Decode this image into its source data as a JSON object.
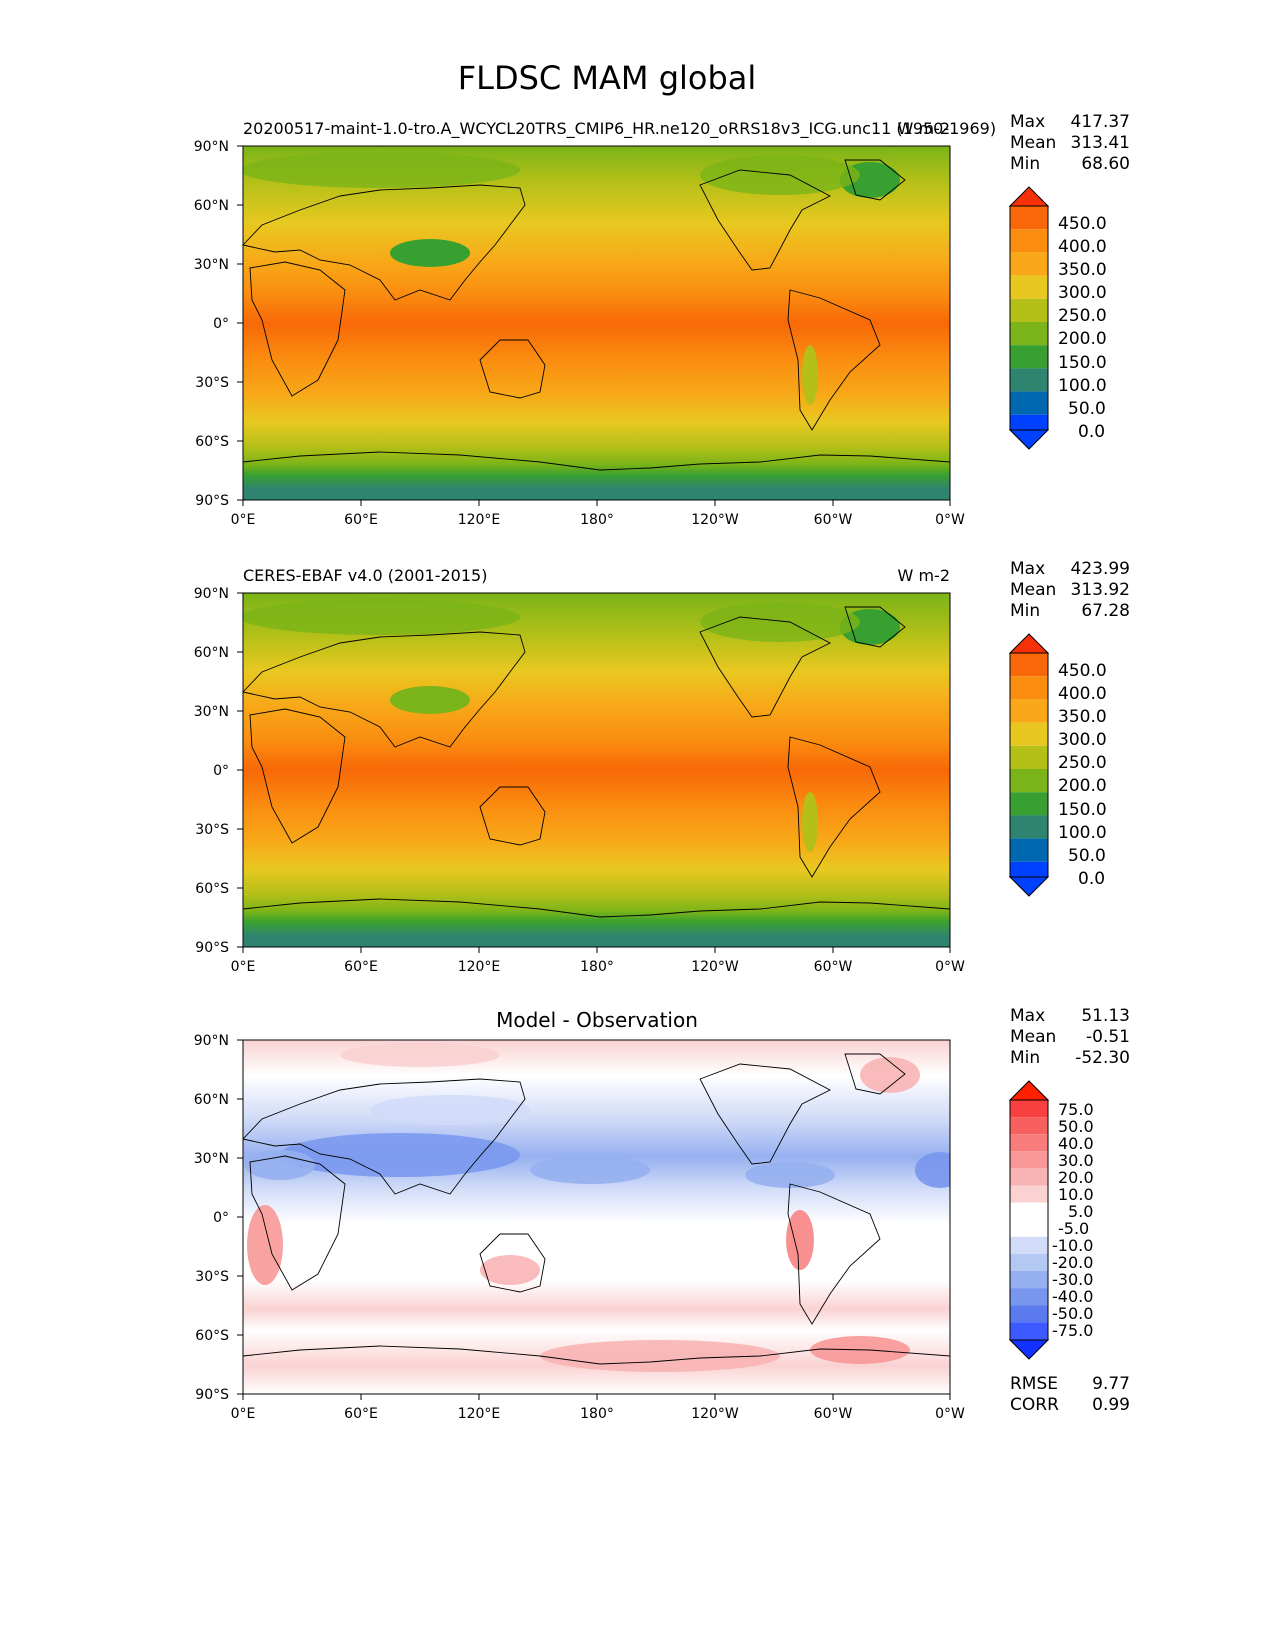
{
  "figure": {
    "title": "FLDSC MAM global"
  },
  "axes": {
    "lat_ticks": [
      "90°N",
      "60°N",
      "30°N",
      "0°",
      "30°S",
      "60°S",
      "90°S"
    ],
    "lon_ticks": [
      "0°E",
      "60°E",
      "120°E",
      "180°",
      "120°W",
      "60°W",
      "0°W"
    ]
  },
  "colors": {
    "field": [
      "#0040ff",
      "#0068b0",
      "#2f8470",
      "#38a030",
      "#7ab418",
      "#b4c018",
      "#e8c820",
      "#f8a818",
      "#fa8c10",
      "#f86808",
      "#f83008"
    ],
    "diff": [
      "#1432ff",
      "#3c5aff",
      "#5a7aee",
      "#7896ee",
      "#96b0f0",
      "#b4c8f4",
      "#d2dcf8",
      "#ffffff",
      "#fad2d2",
      "#f8b4b4",
      "#f89898",
      "#f87c7c",
      "#f86060",
      "#f84040",
      "#ff2000"
    ]
  },
  "panels": [
    {
      "id": "model",
      "left_title": "20200517-maint-1.0-tro.A_WCYCL20TRS_CMIP6_HR.ne120_oRRS18v3_ICG.unc11 (1950-1969)",
      "right_title": "W m-2",
      "center_title": "",
      "stats": [
        {
          "label": "Max",
          "value": "417.37"
        },
        {
          "label": "Mean",
          "value": "313.41"
        },
        {
          "label": "Min",
          "value": "68.60"
        }
      ],
      "colorbar_ticks": [
        "450.0",
        "400.0",
        "350.0",
        "300.0",
        "250.0",
        "200.0",
        "150.0",
        "100.0",
        "50.0",
        "0.0"
      ]
    },
    {
      "id": "obs",
      "left_title": "CERES-EBAF v4.0 (2001-2015)",
      "right_title": "W m-2",
      "center_title": "",
      "stats": [
        {
          "label": "Max",
          "value": "423.99"
        },
        {
          "label": "Mean",
          "value": "313.92"
        },
        {
          "label": "Min",
          "value": "67.28"
        }
      ],
      "colorbar_ticks": [
        "450.0",
        "400.0",
        "350.0",
        "300.0",
        "250.0",
        "200.0",
        "150.0",
        "100.0",
        "50.0",
        "0.0"
      ]
    },
    {
      "id": "diff",
      "left_title": "",
      "right_title": "",
      "center_title": "Model - Observation",
      "stats": [
        {
          "label": "Max",
          "value": "51.13"
        },
        {
          "label": "Mean",
          "value": "-0.51"
        },
        {
          "label": "Min",
          "value": "-52.30"
        }
      ],
      "colorbar_ticks": [
        "75.0",
        "50.0",
        "40.0",
        "30.0",
        "20.0",
        "10.0",
        "5.0",
        "-5.0",
        "-10.0",
        "-20.0",
        "-30.0",
        "-40.0",
        "-50.0",
        "-75.0"
      ],
      "bottom_stats": [
        {
          "label": "RMSE",
          "value": "9.77"
        },
        {
          "label": "CORR",
          "value": "0.99"
        }
      ]
    }
  ]
}
